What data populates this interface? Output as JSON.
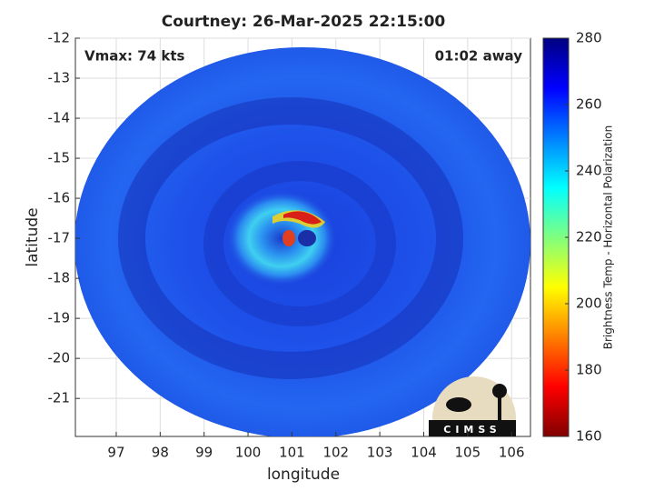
{
  "chart_data": {
    "type": "image",
    "title": "Courtney: 26-Mar-2025 22:15:00",
    "xlabel": "longitude",
    "ylabel": "latitude",
    "xlim": [
      96.07,
      106.43
    ],
    "ylim": [
      -21.95,
      -12
    ],
    "xticks": [
      97,
      98,
      99,
      100,
      101,
      102,
      103,
      104,
      105,
      106
    ],
    "yticks": [
      -12,
      -13,
      -14,
      -15,
      -16,
      -17,
      -18,
      -19,
      -20,
      -21
    ],
    "grid": true,
    "annotations": [
      "Vmax: 74 kts",
      "01:02 away"
    ],
    "colorbar": {
      "label": "Brightness Temp - Horizontal Polarization",
      "lim": [
        160,
        280
      ],
      "ticks": [
        160,
        180,
        200,
        220,
        240,
        260,
        280
      ],
      "colormap": "jet"
    },
    "logo": "CIMSS"
  }
}
